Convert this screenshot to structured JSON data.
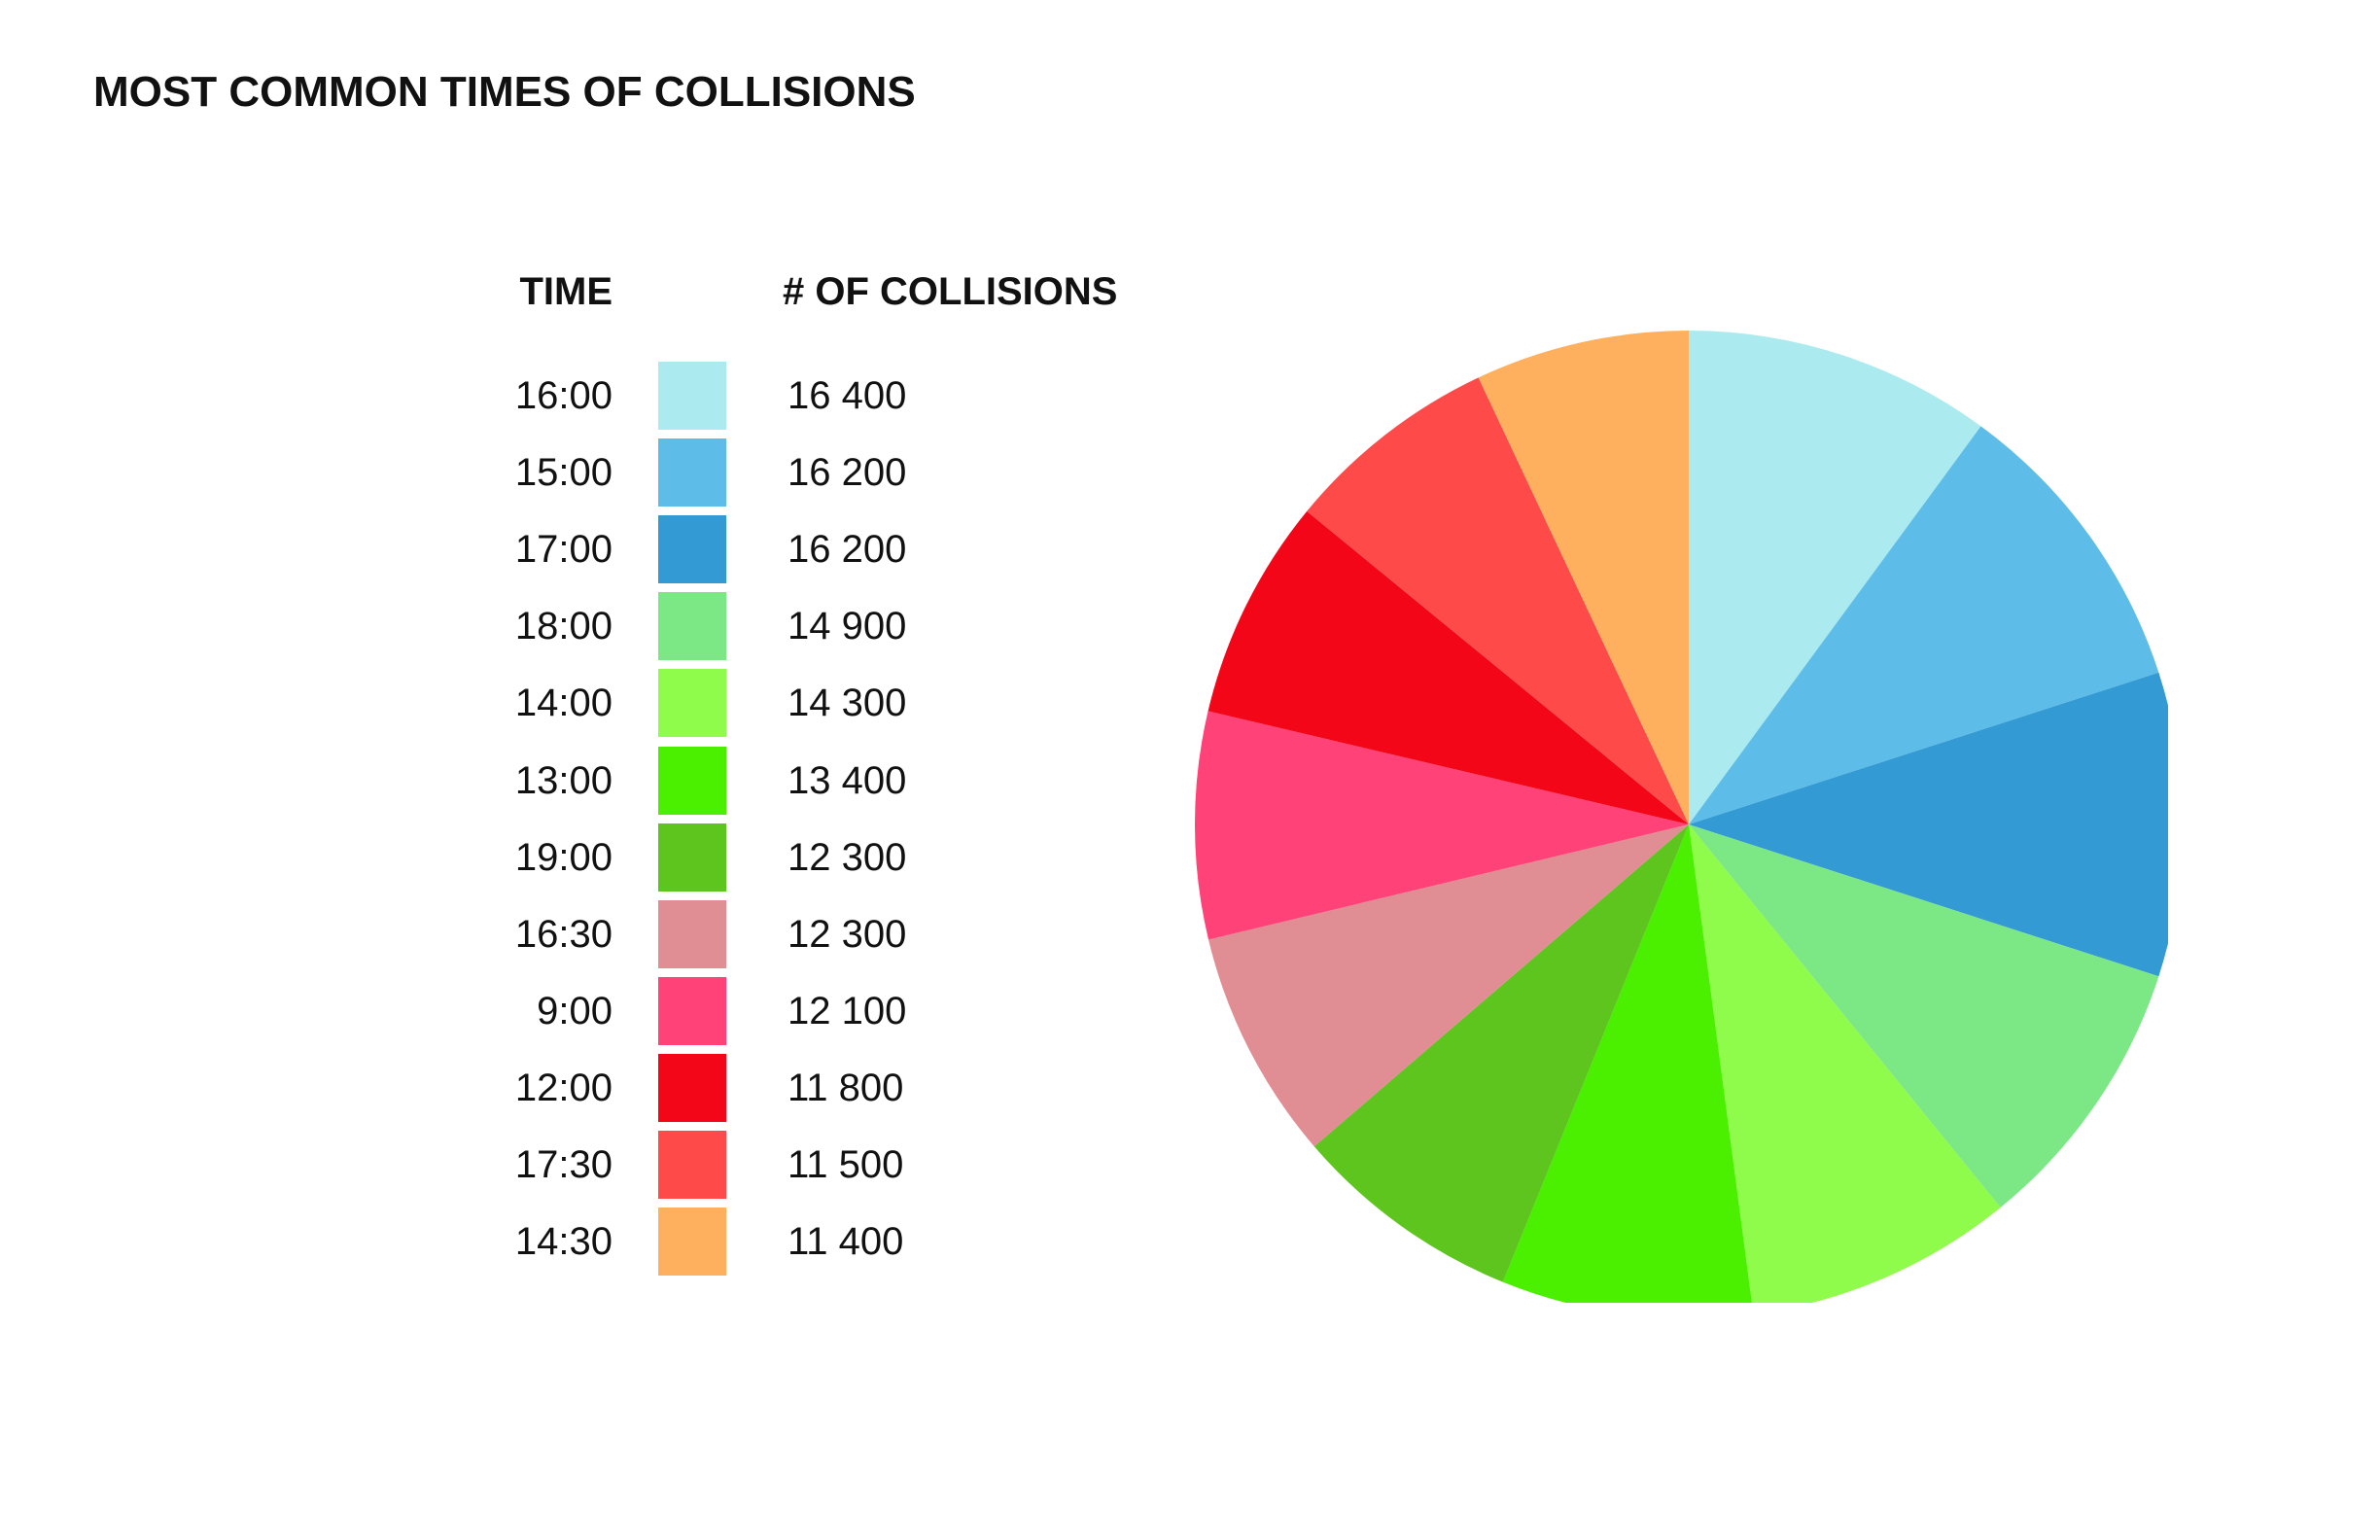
{
  "chart_data": {
    "type": "pie",
    "title": "MOST COMMON TIMES OF COLLISIONS",
    "legend": {
      "time_header": "TIME",
      "count_header": "# OF COLLISIONS"
    },
    "slices": [
      {
        "label": "16:00",
        "value": 16400,
        "value_text": "16 400",
        "color": "#ABEBF0"
      },
      {
        "label": "15:00",
        "value": 16200,
        "value_text": "16 200",
        "color": "#5DBDE8"
      },
      {
        "label": "17:00",
        "value": 16200,
        "value_text": "16 200",
        "color": "#339AD3"
      },
      {
        "label": "18:00",
        "value": 14900,
        "value_text": "14 900",
        "color": "#7BE885"
      },
      {
        "label": "14:00",
        "value": 14300,
        "value_text": "14 300",
        "color": "#8FFB4A"
      },
      {
        "label": "13:00",
        "value": 13400,
        "value_text": "13 400",
        "color": "#4BEF00"
      },
      {
        "label": "19:00",
        "value": 12300,
        "value_text": "12 300",
        "color": "#5DC51E"
      },
      {
        "label": "16:30",
        "value": 12300,
        "value_text": "12 300",
        "color": "#E08E94"
      },
      {
        "label": "9:00",
        "value": 12100,
        "value_text": "12 100",
        "color": "#FF4278"
      },
      {
        "label": "12:00",
        "value": 11800,
        "value_text": "11 800",
        "color": "#F20618"
      },
      {
        "label": "17:30",
        "value": 11500,
        "value_text": "11 500",
        "color": "#FF4A4A"
      },
      {
        "label": "14:30",
        "value": 11400,
        "value_text": "11 400",
        "color": "#FFB05E"
      }
    ]
  }
}
